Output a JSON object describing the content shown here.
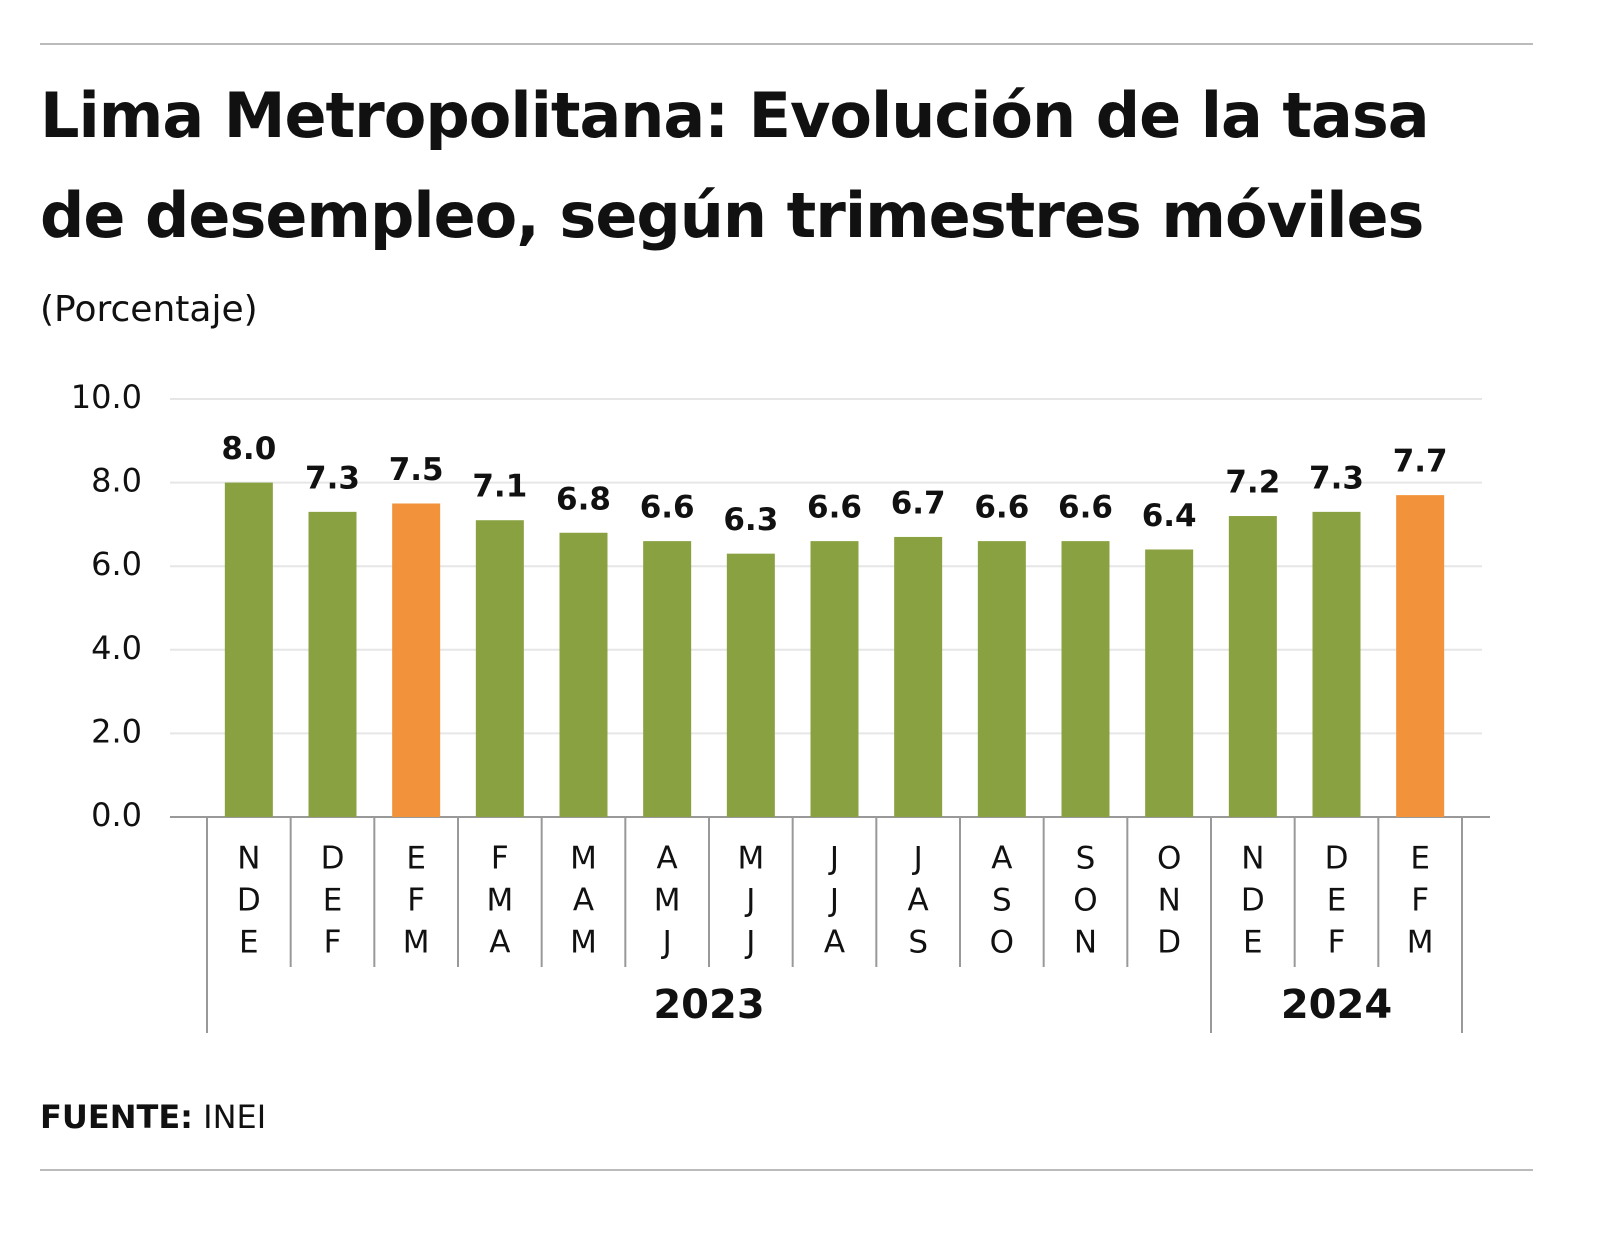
{
  "chart_data": {
    "type": "bar",
    "title": [
      "Lima Metropolitana: Evolución de la tasa",
      "de desempleo, según trimestres móviles"
    ],
    "subtitle": "(Porcentaje)",
    "categories": [
      [
        "N",
        "D",
        "E"
      ],
      [
        "D",
        "E",
        "F"
      ],
      [
        "E",
        "F",
        "M"
      ],
      [
        "F",
        "M",
        "A"
      ],
      [
        "M",
        "A",
        "M"
      ],
      [
        "A",
        "M",
        "J"
      ],
      [
        "M",
        "J",
        "J"
      ],
      [
        "J",
        "J",
        "A"
      ],
      [
        "J",
        "A",
        "S"
      ],
      [
        "A",
        "S",
        "O"
      ],
      [
        "S",
        "O",
        "N"
      ],
      [
        "O",
        "N",
        "D"
      ],
      [
        "N",
        "D",
        "E"
      ],
      [
        "D",
        "E",
        "F"
      ],
      [
        "E",
        "F",
        "M"
      ]
    ],
    "years": [
      "2023",
      "2023",
      "2023",
      "2023",
      "2023",
      "2023",
      "2023",
      "2023",
      "2023",
      "2023",
      "2023",
      "2023",
      "2024",
      "2024",
      "2024"
    ],
    "values": [
      8.0,
      7.3,
      7.5,
      7.1,
      6.8,
      6.6,
      6.3,
      6.6,
      6.7,
      6.6,
      6.6,
      6.4,
      7.2,
      7.3,
      7.7
    ],
    "value_labels": [
      "8.0",
      "7.3",
      "7.5",
      "7.1",
      "6.8",
      "6.6",
      "6.3",
      "6.6",
      "6.7",
      "6.6",
      "6.6",
      "6.4",
      "7.2",
      "7.3",
      "7.7"
    ],
    "colors": [
      "#89a141",
      "#89a141",
      "#f2923a",
      "#89a141",
      "#89a141",
      "#89a141",
      "#89a141",
      "#89a141",
      "#89a141",
      "#89a141",
      "#89a141",
      "#89a141",
      "#89a141",
      "#89a141",
      "#f2923a"
    ],
    "ylim": [
      0,
      10
    ],
    "yticks": [
      {
        "value": 0,
        "label": "0.0"
      },
      {
        "value": 2,
        "label": "2.0"
      },
      {
        "value": 4,
        "label": "4.0"
      },
      {
        "value": 6,
        "label": "6.0"
      },
      {
        "value": 8,
        "label": "8.0"
      },
      {
        "value": 10,
        "label": "10.0"
      }
    ],
    "grid": true,
    "source_label": "FUENTE:",
    "source": "INEI"
  }
}
